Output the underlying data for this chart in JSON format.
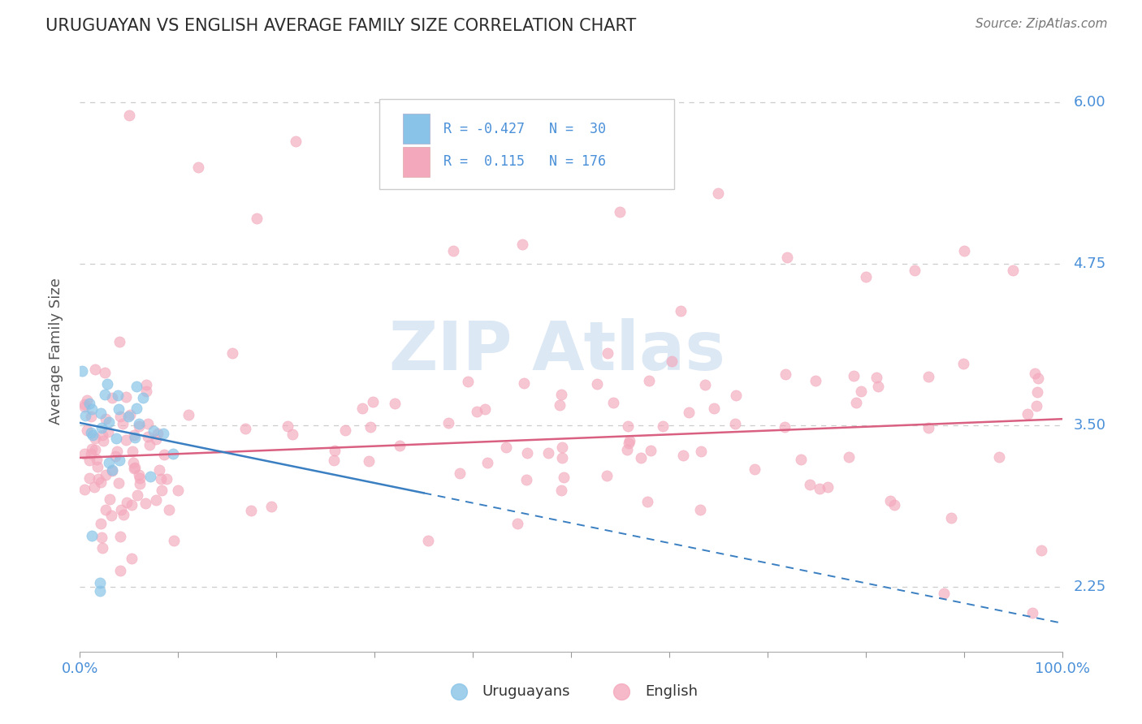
{
  "title": "URUGUAYAN VS ENGLISH AVERAGE FAMILY SIZE CORRELATION CHART",
  "source": "Source: ZipAtlas.com",
  "ylabel": "Average Family Size",
  "yticks": [
    2.25,
    3.5,
    4.75,
    6.0
  ],
  "xlim": [
    0.0,
    100.0
  ],
  "ylim": [
    1.75,
    6.4
  ],
  "blue_color": "#89c4e8",
  "pink_color": "#f4a8bc",
  "trend_blue_color": "#3a7fc1",
  "trend_pink_color": "#d96080",
  "legend_label_blue": "Uruguayans",
  "legend_label_pink": "English",
  "background_color": "#ffffff",
  "grid_color": "#cccccc",
  "title_color": "#2d2d2d",
  "axis_label_color": "#555555",
  "ytick_color": "#4a90d9",
  "xtick_color": "#4a90d9",
  "source_color": "#777777",
  "blue_intercept": 3.52,
  "blue_slope": -0.0155,
  "pink_intercept": 3.25,
  "pink_slope": 0.003,
  "watermark_color": "#dde8f5"
}
